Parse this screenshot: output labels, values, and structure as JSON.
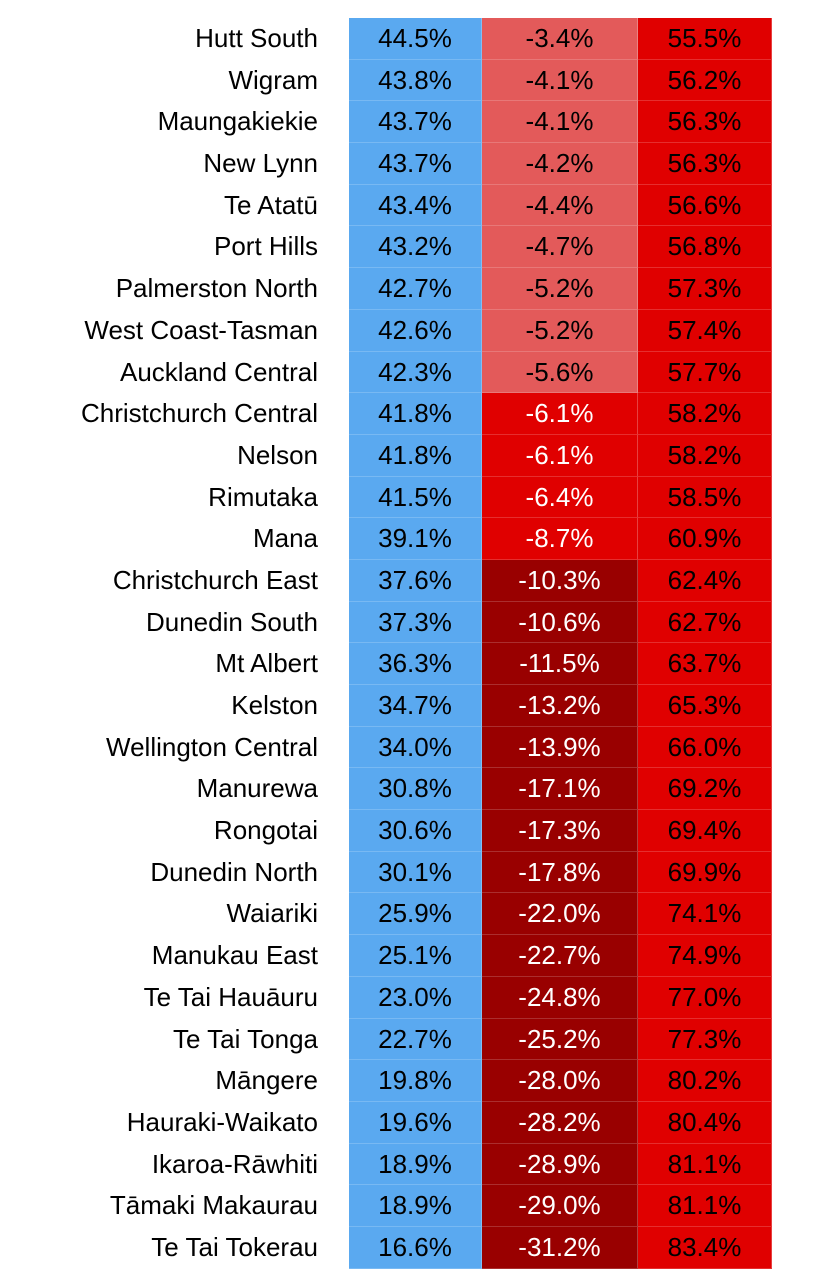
{
  "colors": {
    "blue": "#5aa9f0",
    "red": "#e00000",
    "light_red": "#e35a5a",
    "dark_red": "#990000"
  },
  "rows": [
    {
      "name": "Hutt South",
      "v1": "44.5%",
      "v2": "-3.4%",
      "v3": "55.5%",
      "level": "light"
    },
    {
      "name": "Wigram",
      "v1": "43.8%",
      "v2": "-4.1%",
      "v3": "56.2%",
      "level": "light"
    },
    {
      "name": "Maungakiekie",
      "v1": "43.7%",
      "v2": "-4.1%",
      "v3": "56.3%",
      "level": "light"
    },
    {
      "name": "New Lynn",
      "v1": "43.7%",
      "v2": "-4.2%",
      "v3": "56.3%",
      "level": "light"
    },
    {
      "name": "Te Atatū",
      "v1": "43.4%",
      "v2": "-4.4%",
      "v3": "56.6%",
      "level": "light"
    },
    {
      "name": "Port Hills",
      "v1": "43.2%",
      "v2": "-4.7%",
      "v3": "56.8%",
      "level": "light"
    },
    {
      "name": "Palmerston North",
      "v1": "42.7%",
      "v2": "-5.2%",
      "v3": "57.3%",
      "level": "light"
    },
    {
      "name": "West Coast-Tasman",
      "v1": "42.6%",
      "v2": "-5.2%",
      "v3": "57.4%",
      "level": "light"
    },
    {
      "name": "Auckland Central",
      "v1": "42.3%",
      "v2": "-5.6%",
      "v3": "57.7%",
      "level": "light"
    },
    {
      "name": "Christchurch Central",
      "v1": "41.8%",
      "v2": "-6.1%",
      "v3": "58.2%",
      "level": "mid"
    },
    {
      "name": "Nelson",
      "v1": "41.8%",
      "v2": "-6.1%",
      "v3": "58.2%",
      "level": "mid"
    },
    {
      "name": "Rimutaka",
      "v1": "41.5%",
      "v2": "-6.4%",
      "v3": "58.5%",
      "level": "mid"
    },
    {
      "name": "Mana",
      "v1": "39.1%",
      "v2": "-8.7%",
      "v3": "60.9%",
      "level": "mid"
    },
    {
      "name": "Christchurch East",
      "v1": "37.6%",
      "v2": "-10.3%",
      "v3": "62.4%",
      "level": "dark"
    },
    {
      "name": "Dunedin South",
      "v1": "37.3%",
      "v2": "-10.6%",
      "v3": "62.7%",
      "level": "dark"
    },
    {
      "name": "Mt Albert",
      "v1": "36.3%",
      "v2": "-11.5%",
      "v3": "63.7%",
      "level": "dark"
    },
    {
      "name": "Kelston",
      "v1": "34.7%",
      "v2": "-13.2%",
      "v3": "65.3%",
      "level": "dark"
    },
    {
      "name": "Wellington Central",
      "v1": "34.0%",
      "v2": "-13.9%",
      "v3": "66.0%",
      "level": "dark"
    },
    {
      "name": "Manurewa",
      "v1": "30.8%",
      "v2": "-17.1%",
      "v3": "69.2%",
      "level": "dark"
    },
    {
      "name": "Rongotai",
      "v1": "30.6%",
      "v2": "-17.3%",
      "v3": "69.4%",
      "level": "dark"
    },
    {
      "name": "Dunedin North",
      "v1": "30.1%",
      "v2": "-17.8%",
      "v3": "69.9%",
      "level": "dark"
    },
    {
      "name": "Waiariki",
      "v1": "25.9%",
      "v2": "-22.0%",
      "v3": "74.1%",
      "level": "dark"
    },
    {
      "name": "Manukau East",
      "v1": "25.1%",
      "v2": "-22.7%",
      "v3": "74.9%",
      "level": "dark"
    },
    {
      "name": "Te Tai Hauāuru",
      "v1": "23.0%",
      "v2": "-24.8%",
      "v3": "77.0%",
      "level": "dark"
    },
    {
      "name": "Te Tai Tonga",
      "v1": "22.7%",
      "v2": "-25.2%",
      "v3": "77.3%",
      "level": "dark"
    },
    {
      "name": "Māngere",
      "v1": "19.8%",
      "v2": "-28.0%",
      "v3": "80.2%",
      "level": "dark"
    },
    {
      "name": "Hauraki-Waikato",
      "v1": "19.6%",
      "v2": "-28.2%",
      "v3": "80.4%",
      "level": "dark"
    },
    {
      "name": "Ikaroa-Rāwhiti",
      "v1": "18.9%",
      "v2": "-28.9%",
      "v3": "81.1%",
      "level": "dark"
    },
    {
      "name": "Tāmaki Makaurau",
      "v1": "18.9%",
      "v2": "-29.0%",
      "v3": "81.1%",
      "level": "dark"
    },
    {
      "name": "Te Tai Tokerau",
      "v1": "16.6%",
      "v2": "-31.2%",
      "v3": "83.4%",
      "level": "dark"
    }
  ]
}
